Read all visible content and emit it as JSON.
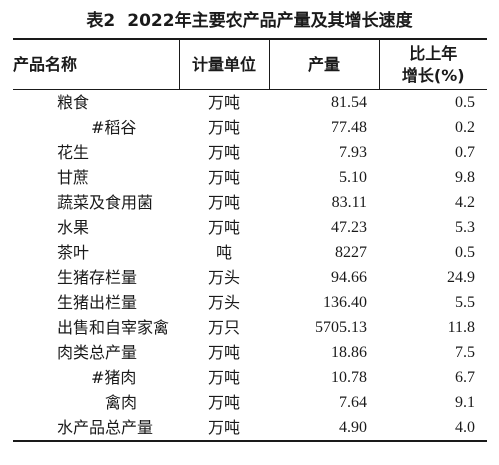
{
  "title": {
    "label": "表2",
    "text": "2022年主要农产品产量及其增长速度"
  },
  "table": {
    "headers": {
      "name": "产品名称",
      "unit": "计量单位",
      "value": "产量",
      "growth_line1": "比上年",
      "growth_line2": "增长(%)"
    },
    "rows": [
      {
        "name": "粮食",
        "indent": 0,
        "unit": "万吨",
        "value": "81.54",
        "growth": "0.5"
      },
      {
        "name": "#稻谷",
        "indent": 1,
        "unit": "万吨",
        "value": "77.48",
        "growth": "0.2"
      },
      {
        "name": "花生",
        "indent": 0,
        "unit": "万吨",
        "value": "7.93",
        "growth": "0.7"
      },
      {
        "name": "甘蔗",
        "indent": 0,
        "unit": "万吨",
        "value": "5.10",
        "growth": "9.8"
      },
      {
        "name": "蔬菜及食用菌",
        "indent": 0,
        "unit": "万吨",
        "value": "83.11",
        "growth": "4.2"
      },
      {
        "name": "水果",
        "indent": 0,
        "unit": "万吨",
        "value": "47.23",
        "growth": "5.3"
      },
      {
        "name": "茶叶",
        "indent": 0,
        "unit": "吨",
        "value": "8227",
        "growth": "0.5"
      },
      {
        "name": "生猪存栏量",
        "indent": 0,
        "unit": "万头",
        "value": "94.66",
        "growth": "24.9"
      },
      {
        "name": "生猪出栏量",
        "indent": 0,
        "unit": "万头",
        "value": "136.40",
        "growth": "5.5"
      },
      {
        "name": "出售和自宰家禽",
        "indent": 0,
        "unit": "万只",
        "value": "5705.13",
        "growth": "11.8"
      },
      {
        "name": "肉类总产量",
        "indent": 0,
        "unit": "万吨",
        "value": "18.86",
        "growth": "7.5"
      },
      {
        "name": "#猪肉",
        "indent": 1,
        "unit": "万吨",
        "value": "10.78",
        "growth": "6.7"
      },
      {
        "name": "禽肉",
        "indent": 2,
        "unit": "万吨",
        "value": "7.64",
        "growth": "9.1"
      },
      {
        "name": "水产品总产量",
        "indent": 0,
        "unit": "万吨",
        "value": "4.90",
        "growth": "4.0"
      }
    ]
  }
}
